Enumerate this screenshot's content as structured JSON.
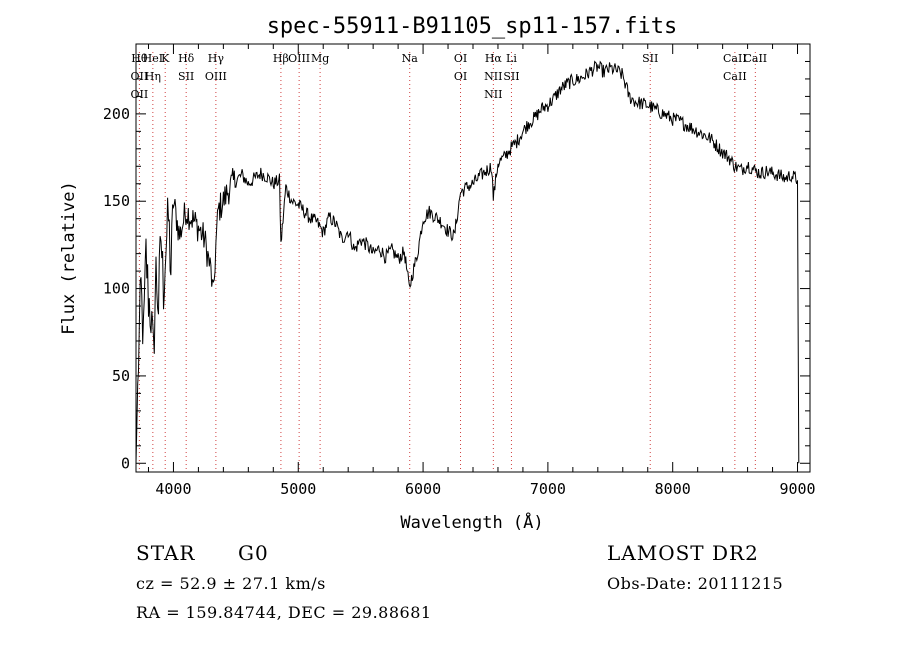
{
  "chart_data": {
    "type": "line",
    "title": "spec-55911-B91105_sp11-157.fits",
    "xlabel": "Wavelength (Å)",
    "ylabel": "Flux (relative)",
    "xlim": [
      3700,
      9100
    ],
    "ylim": [
      -5,
      240
    ],
    "xticks": [
      4000,
      5000,
      6000,
      7000,
      8000,
      9000
    ],
    "yticks": [
      0,
      50,
      100,
      150,
      200
    ],
    "line_color": "#000000",
    "marker_color": "#d04040",
    "series": [
      {
        "x": [
          3700,
          3720,
          3740,
          3760,
          3780,
          3800,
          3820,
          3840,
          3860,
          3880,
          3900,
          3920,
          3940,
          3960,
          3980,
          4000,
          4050,
          4100,
          4150,
          4200,
          4250,
          4300,
          4320,
          4340,
          4360,
          4400,
          4450,
          4500,
          4550,
          4600,
          4650,
          4700,
          4750,
          4800,
          4850,
          4861,
          4900,
          4950,
          5000,
          5050,
          5100,
          5150,
          5200,
          5250,
          5300,
          5350,
          5400,
          5450,
          5500,
          5550,
          5600,
          5650,
          5700,
          5750,
          5800,
          5850,
          5890,
          5920,
          5950,
          6000,
          6050,
          6100,
          6150,
          6200,
          6250,
          6300,
          6350,
          6400,
          6450,
          6500,
          6550,
          6563,
          6600,
          6650,
          6700,
          6750,
          6800,
          6850,
          6900,
          6950,
          7000,
          7050,
          7100,
          7150,
          7200,
          7250,
          7300,
          7350,
          7400,
          7450,
          7500,
          7550,
          7600,
          7650,
          7700,
          7750,
          7800,
          7850,
          7900,
          7950,
          8000,
          8050,
          8100,
          8150,
          8200,
          8250,
          8300,
          8350,
          8400,
          8450,
          8500,
          8550,
          8600,
          8650,
          8700,
          8750,
          8800,
          8850,
          8900,
          8950,
          9000,
          9010
        ],
        "y": [
          0,
          60,
          100,
          70,
          120,
          95,
          85,
          60,
          110,
          90,
          130,
          100,
          125,
          140,
          110,
          150,
          130,
          145,
          140,
          135,
          128,
          110,
          95,
          125,
          145,
          150,
          158,
          162,
          165,
          160,
          163,
          166,
          164,
          160,
          162,
          125,
          158,
          150,
          148,
          144,
          140,
          138,
          132,
          141,
          137,
          128,
          133,
          122,
          128,
          125,
          120,
          123,
          118,
          122,
          117,
          121,
          100,
          110,
          118,
          140,
          144,
          141,
          138,
          133,
          130,
          155,
          158,
          160,
          164,
          167,
          170,
          152,
          172,
          175,
          180,
          184,
          190,
          195,
          198,
          203,
          205,
          209,
          214,
          217,
          219,
          220,
          222,
          225,
          227,
          224,
          226,
          225,
          222,
          210,
          207,
          206,
          205,
          203,
          201,
          199,
          197,
          196,
          194,
          192,
          190,
          188,
          186,
          182,
          178,
          175,
          170,
          168,
          171,
          168,
          166,
          167,
          166,
          165,
          163,
          165,
          162,
          0
        ]
      }
    ],
    "lines": [
      {
        "labels": [
          "Hθ",
          "OII",
          "OII"
        ],
        "wl": 3727
      },
      {
        "labels": [
          "HeI",
          "Hη"
        ],
        "wl": 3835
      },
      {
        "labels": [
          "K"
        ],
        "wl": 3934
      },
      {
        "labels": [
          "Hδ",
          "SII"
        ],
        "wl": 4102
      },
      {
        "labels": [
          "Hγ",
          "OIII"
        ],
        "wl": 4340
      },
      {
        "labels": [
          "Hβ"
        ],
        "wl": 4861
      },
      {
        "labels": [
          "OIII"
        ],
        "wl": 5007
      },
      {
        "labels": [
          "Mg"
        ],
        "wl": 5175
      },
      {
        "labels": [
          "Na"
        ],
        "wl": 5893
      },
      {
        "labels": [
          "OI",
          "OI"
        ],
        "wl": 6300
      },
      {
        "labels": [
          "Hα",
          "NII",
          "NII"
        ],
        "wl": 6563
      },
      {
        "labels": [
          "Li",
          "SII"
        ],
        "wl": 6708
      },
      {
        "labels": [
          "SII"
        ],
        "wl": 7820
      },
      {
        "labels": [
          "CaII",
          "CaII"
        ],
        "wl": 8498
      },
      {
        "labels": [
          "CaII"
        ],
        "wl": 8662
      }
    ]
  },
  "info": {
    "object_class": "STAR",
    "subclass": "G0",
    "survey": "LAMOST DR2",
    "redshift": "cz = 52.9 ± 27.1 km/s",
    "obs_date": "Obs-Date: 20111215",
    "coords": "RA = 159.84744, DEC =  29.88681"
  }
}
